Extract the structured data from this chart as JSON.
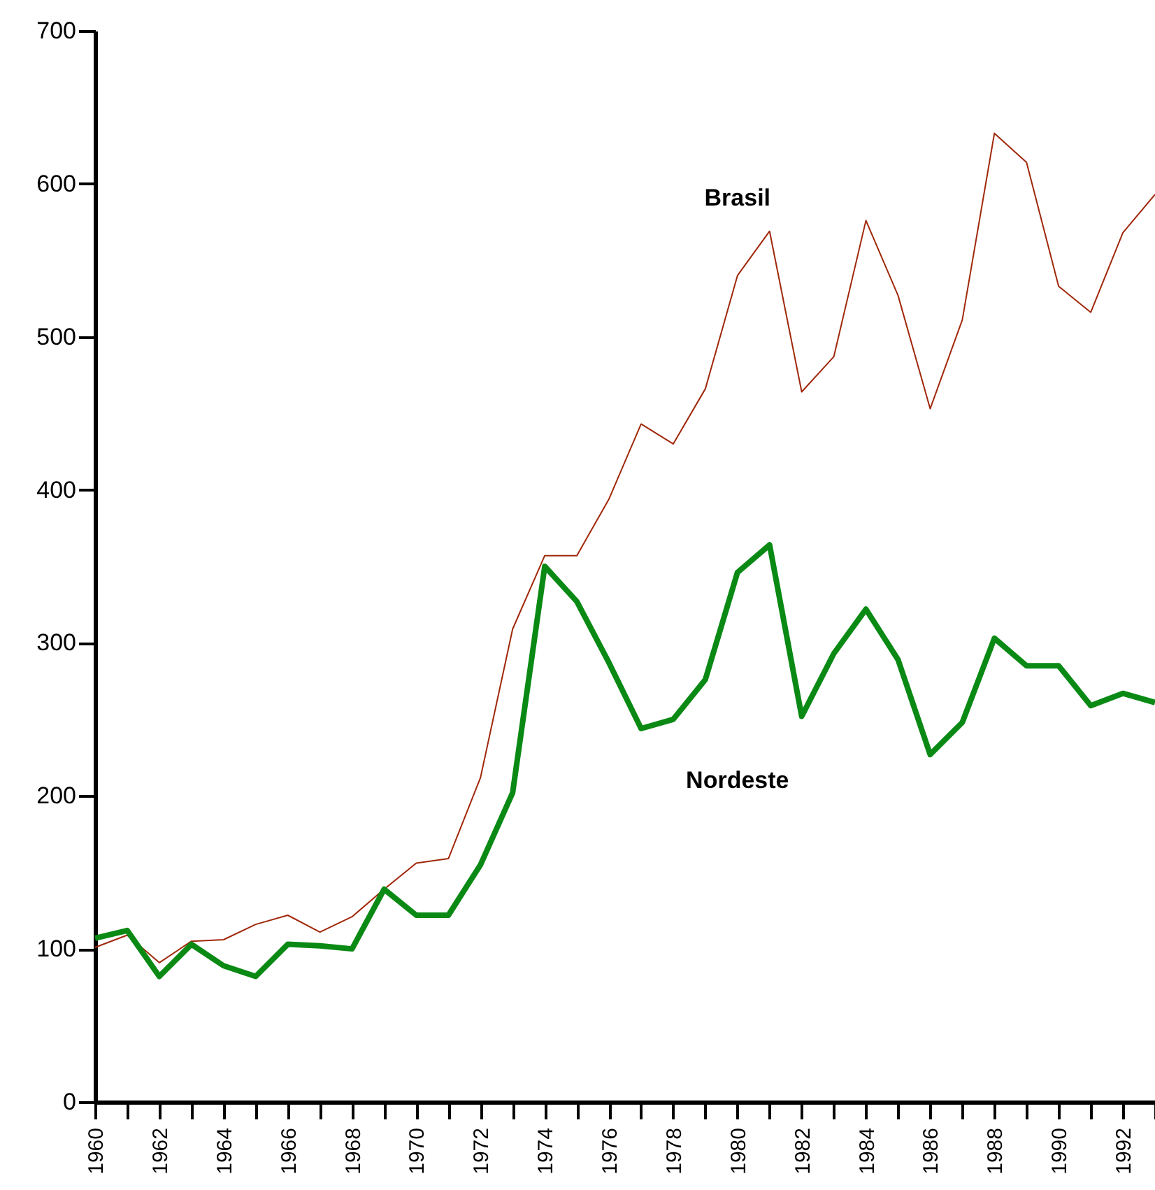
{
  "chart_data": {
    "type": "line",
    "x": [
      1960,
      1961,
      1962,
      1963,
      1964,
      1965,
      1966,
      1967,
      1968,
      1969,
      1970,
      1971,
      1972,
      1973,
      1974,
      1975,
      1976,
      1977,
      1978,
      1979,
      1980,
      1981,
      1982,
      1983,
      1984,
      1985,
      1986,
      1987,
      1988,
      1989,
      1990,
      1991,
      1992,
      1993
    ],
    "series": [
      {
        "name": "Brasil",
        "color": "#a0280a",
        "values": [
          101,
          109,
          91,
          105,
          106,
          116,
          122,
          111,
          121,
          139,
          156,
          159,
          212,
          309,
          357,
          357,
          394,
          443,
          430,
          466,
          540,
          569,
          464,
          487,
          576,
          527,
          453,
          511,
          633,
          614,
          533,
          516,
          568,
          593
        ]
      },
      {
        "name": "Nordeste",
        "color": "#0a8a14",
        "values": [
          107,
          112,
          82,
          103,
          89,
          82,
          103,
          102,
          100,
          139,
          122,
          122,
          155,
          202,
          350,
          327,
          287,
          244,
          250,
          276,
          346,
          364,
          252,
          293,
          322,
          289,
          227,
          248,
          303,
          285,
          285,
          259,
          267,
          261
        ]
      }
    ],
    "xlim": [
      1960,
      1993
    ],
    "ylim": [
      0,
      700
    ],
    "yticks": [
      0,
      100,
      200,
      300,
      400,
      500,
      600,
      700
    ],
    "xticks": [
      1960,
      {
        "value": 1961,
        "label": null
      },
      1962,
      {
        "value": 1963,
        "label": null
      },
      1964,
      {
        "value": 1965,
        "label": null
      },
      1966,
      {
        "value": 1967,
        "label": null
      },
      1968,
      {
        "value": 1969,
        "label": null
      },
      1970,
      {
        "value": 1971,
        "label": null
      },
      1972,
      {
        "value": 1973,
        "label": null
      },
      1974,
      {
        "value": 1975,
        "label": null
      },
      1976,
      {
        "value": 1977,
        "label": null
      },
      1978,
      {
        "value": 1979,
        "label": null
      },
      1980,
      {
        "value": 1981,
        "label": null
      },
      1982,
      {
        "value": 1983,
        "label": null
      },
      1984,
      {
        "value": 1985,
        "label": null
      },
      1986,
      {
        "value": 1987,
        "label": null
      },
      1988,
      {
        "value": 1989,
        "label": null
      },
      1990,
      {
        "value": 1991,
        "label": null
      },
      1992,
      {
        "value": 1993,
        "label": null
      }
    ],
    "grid": false
  }
}
